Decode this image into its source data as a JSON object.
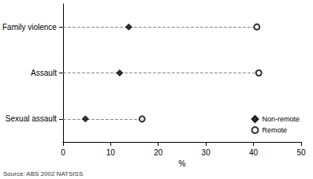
{
  "chart_data": {
    "type": "dot",
    "orientation": "horizontal",
    "categories": [
      "Family violence",
      "Assault",
      "Sexual assault"
    ],
    "series": [
      {
        "name": "Non-remote",
        "color": "#000000",
        "marker": "diamond",
        "values": [
          13.8,
          11.9,
          4.7
        ]
      },
      {
        "name": "Remote",
        "color": "#000000",
        "marker": "emptyCircle",
        "values": [
          40.7,
          41.1,
          16.6
        ]
      }
    ],
    "xlabel": "%",
    "xlim": [
      0,
      50
    ],
    "xticks": [
      0,
      10,
      20,
      30,
      40,
      50
    ],
    "legend": "lower right",
    "source": "Source: ABS 2002 NATSISS"
  }
}
